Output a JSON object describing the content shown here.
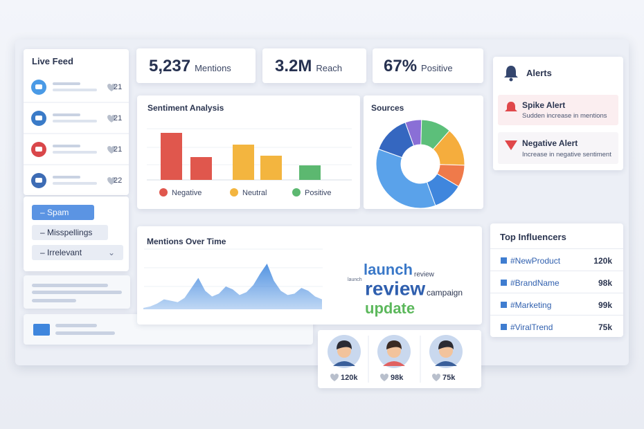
{
  "live_feed": {
    "title": "Live Feed",
    "items": [
      {
        "likes": 21
      },
      {
        "likes": 21
      },
      {
        "likes": 21
      },
      {
        "likes": 22
      }
    ]
  },
  "filters": [
    "Spam",
    "Misspellings",
    "Irrelevant"
  ],
  "stats": [
    {
      "value": "5,237",
      "label": "Mentions"
    },
    {
      "value": "3.2M",
      "label": "Reach"
    },
    {
      "value": "67%",
      "label": "Positive"
    }
  ],
  "sentiment": {
    "type": "bar",
    "title": "Sentiment Analysis",
    "series": [
      {
        "name": "Negative",
        "color": "#e0574d",
        "values": [
          68,
          33
        ]
      },
      {
        "name": "Neutral",
        "color": "#f3b53f",
        "values": [
          51,
          35
        ]
      },
      {
        "name": "Positive",
        "color": "#5cb870",
        "values": [
          21
        ]
      }
    ]
  },
  "sources": {
    "type": "pie",
    "title": "Sources",
    "values": [
      6,
      11,
      14,
      8,
      11,
      36,
      14
    ],
    "colors": [
      "#8a6fd6",
      "#5cbf7a",
      "#f5ad3d",
      "#ef7a4a",
      "#3f86dd",
      "#5aa2ea",
      "#3567c0"
    ]
  },
  "mentions_over_time": {
    "type": "area",
    "title": "Mentions Over Time",
    "color": "#4a8ee0",
    "values": [
      2,
      4,
      8,
      14,
      12,
      10,
      16,
      30,
      44,
      26,
      18,
      22,
      32,
      28,
      20,
      24,
      34,
      50,
      64,
      40,
      26,
      20,
      22,
      30,
      26,
      18,
      14
    ]
  },
  "word_cloud": [
    "launch",
    "review",
    "update",
    "campaign",
    "review",
    "launch"
  ],
  "alerts": {
    "title": "Alerts",
    "items": [
      {
        "title": "Spike Alert",
        "text": "Sudden increase in mentions"
      },
      {
        "title": "Negative Alert",
        "text": "Increase in negative sentiment"
      }
    ]
  },
  "influencers": {
    "title": "Top Influencers",
    "rows": [
      {
        "tag": "#NewProduct",
        "count": "120k"
      },
      {
        "tag": "#BrandName",
        "count": "98k"
      },
      {
        "tag": "#Marketing",
        "count": "99k"
      },
      {
        "tag": "#ViralTrend",
        "count": "75k"
      }
    ]
  },
  "avatars": [
    {
      "likes": "120k"
    },
    {
      "likes": "98k"
    },
    {
      "likes": "75k"
    }
  ]
}
